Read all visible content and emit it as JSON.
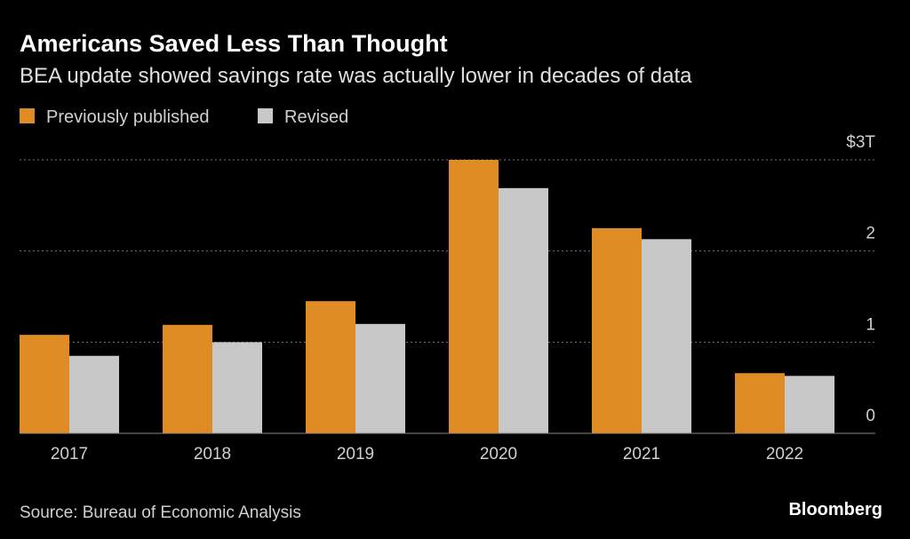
{
  "chart_data": {
    "type": "bar",
    "title": "Americans Saved Less Than Thought",
    "subtitle": "BEA update showed savings rate was actually lower in decades of data",
    "categories": [
      "2017",
      "2018",
      "2019",
      "2020",
      "2021",
      "2022"
    ],
    "series": [
      {
        "name": "Previously published",
        "color": "#e08c24",
        "values": [
          1.08,
          1.19,
          1.45,
          3.0,
          2.25,
          0.66
        ]
      },
      {
        "name": "Revised",
        "color": "#c8c8c8",
        "values": [
          0.85,
          1.0,
          1.2,
          2.69,
          2.13,
          0.63
        ]
      }
    ],
    "ylim": [
      0,
      3
    ],
    "yticks": [
      0,
      1,
      2,
      {
        "value": 3,
        "label": "$3T"
      }
    ],
    "grid": true,
    "source": "Source: Bureau of Economic Analysis",
    "brand": "Bloomberg"
  }
}
